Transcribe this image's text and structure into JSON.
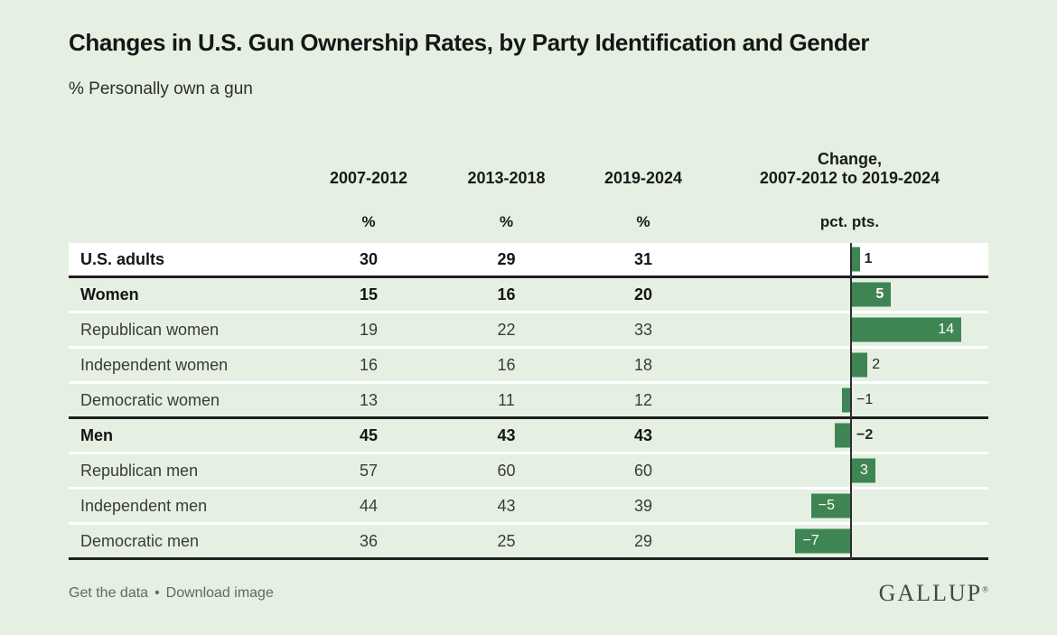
{
  "header": {
    "title": "Changes in U.S. Gun Ownership Rates, by Party Identification and Gender",
    "subtitle": "% Personally own a gun"
  },
  "table": {
    "columns": {
      "period1": "2007-2012",
      "period2": "2013-2018",
      "period3": "2019-2024",
      "change_line1": "Change,",
      "change_line2": "2007-2012 to 2019-2024",
      "unit_pct1": "%",
      "unit_pct2": "%",
      "unit_pct3": "%",
      "unit_change": "pct. pts."
    },
    "rows": [
      {
        "label": "U.S. adults",
        "p1": "30",
        "p2": "29",
        "p3": "31",
        "change": 1,
        "change_label": "1",
        "bold": true,
        "highlight": true,
        "rule_below": true
      },
      {
        "label": "Women",
        "p1": "15",
        "p2": "16",
        "p3": "20",
        "change": 5,
        "change_label": "5",
        "bold": true,
        "highlight": false,
        "rule_below": false
      },
      {
        "label": "Republican women",
        "p1": "19",
        "p2": "22",
        "p3": "33",
        "change": 14,
        "change_label": "14",
        "bold": false,
        "highlight": false,
        "rule_below": false
      },
      {
        "label": "Independent women",
        "p1": "16",
        "p2": "16",
        "p3": "18",
        "change": 2,
        "change_label": "2",
        "bold": false,
        "highlight": false,
        "rule_below": false
      },
      {
        "label": "Democratic women",
        "p1": "13",
        "p2": "11",
        "p3": "12",
        "change": -1,
        "change_label": "−1",
        "bold": false,
        "highlight": false,
        "rule_below": true
      },
      {
        "label": "Men",
        "p1": "45",
        "p2": "43",
        "p3": "43",
        "change": -2,
        "change_label": "−2",
        "bold": true,
        "highlight": false,
        "rule_below": false
      },
      {
        "label": "Republican men",
        "p1": "57",
        "p2": "60",
        "p3": "60",
        "change": 3,
        "change_label": "3",
        "bold": false,
        "highlight": false,
        "rule_below": false
      },
      {
        "label": "Independent men",
        "p1": "44",
        "p2": "43",
        "p3": "39",
        "change": -5,
        "change_label": "−5",
        "bold": false,
        "highlight": false,
        "rule_below": false
      },
      {
        "label": "Democratic men",
        "p1": "36",
        "p2": "25",
        "p3": "29",
        "change": -7,
        "change_label": "−7",
        "bold": false,
        "highlight": false,
        "rule_below": true
      }
    ]
  },
  "chart_data": {
    "type": "bar",
    "bar_orientation": "horizontal",
    "title": "Changes in U.S. Gun Ownership Rates, by Party Identification and Gender",
    "subtitle": "% Personally own a gun",
    "categories": [
      "U.S. adults",
      "Women",
      "Republican women",
      "Independent women",
      "Democratic women",
      "Men",
      "Republican men",
      "Independent men",
      "Democratic men"
    ],
    "series": [
      {
        "name": "2007-2012 (%)",
        "values": [
          30,
          15,
          19,
          16,
          13,
          45,
          57,
          44,
          36
        ]
      },
      {
        "name": "2013-2018 (%)",
        "values": [
          29,
          16,
          22,
          16,
          11,
          43,
          60,
          43,
          25
        ]
      },
      {
        "name": "2019-2024 (%)",
        "values": [
          31,
          20,
          33,
          18,
          12,
          43,
          60,
          39,
          29
        ]
      },
      {
        "name": "Change, 2007-2012 to 2019-2024 (pct. pts.)",
        "values": [
          1,
          5,
          14,
          2,
          -1,
          -2,
          3,
          -5,
          -7
        ]
      }
    ],
    "bar_series": "Change, 2007-2012 to 2019-2024 (pct. pts.)",
    "xlim": [
      -9,
      16
    ],
    "grid": false,
    "legend_position": "none",
    "bar_color": "#3e8553"
  },
  "footer": {
    "link1": "Get the data",
    "separator": "•",
    "link2": "Download image",
    "logo": "GALLUP",
    "logo_mark": "®"
  },
  "colors": {
    "background": "#e5f0e3",
    "bar": "#3e8553",
    "highlight_row": "#ffffff",
    "rule": "#1e1e1e"
  }
}
